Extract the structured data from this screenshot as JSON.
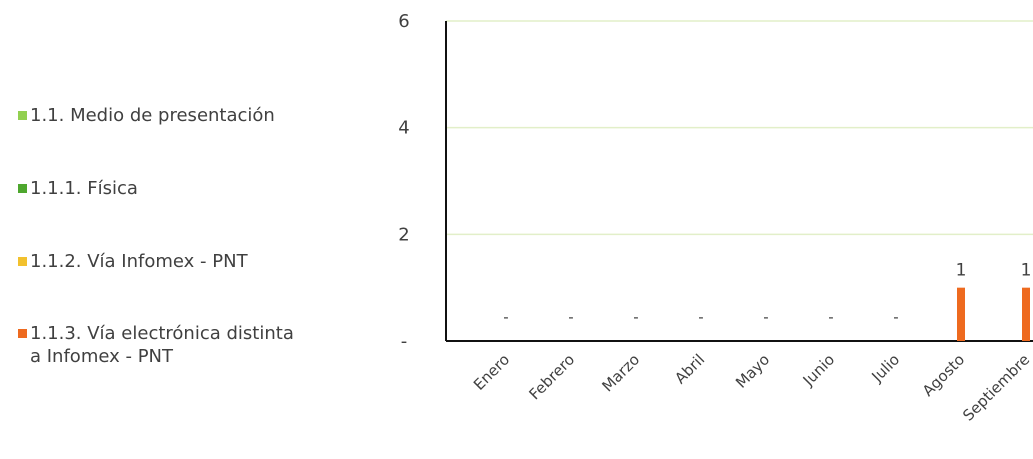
{
  "chart_data": {
    "type": "bar",
    "categories": [
      "Enero",
      "Febrero",
      "Marzo",
      "Abril",
      "Mayo",
      "Junio",
      "Julio",
      "Agosto",
      "Septiembre"
    ],
    "series": [
      {
        "name": "1.1. Medio de presentación",
        "color": "#92d050",
        "values": [
          null,
          null,
          null,
          null,
          null,
          null,
          null,
          null,
          null
        ]
      },
      {
        "name": "1.1.1. Física",
        "color": "#4ea72e",
        "values": [
          null,
          null,
          null,
          null,
          null,
          null,
          null,
          null,
          null
        ]
      },
      {
        "name": "1.1.2. Vía Infomex - PNT",
        "color": "#f2c12e",
        "values": [
          null,
          null,
          null,
          null,
          null,
          null,
          null,
          null,
          null
        ]
      },
      {
        "name": "1.1.3. Vía electrónica distinta\na Infomex - PNT",
        "color": "#ee6a1f",
        "values": [
          0,
          0,
          0,
          0,
          0,
          0,
          0,
          1,
          1
        ]
      }
    ],
    "data_labels": [
      "-",
      "-",
      "-",
      "-",
      "-",
      "-",
      "-",
      "1",
      "1"
    ],
    "y_ticks": [
      "-",
      "2",
      "4",
      "6"
    ],
    "ylim": [
      0,
      6
    ],
    "gridline_color": "#e2efc9",
    "legend_position": "left",
    "grid": true
  }
}
